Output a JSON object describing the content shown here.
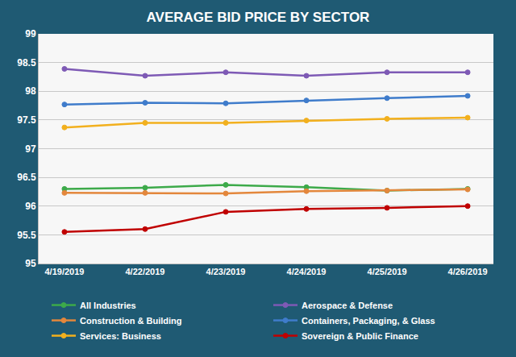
{
  "chart_data": {
    "type": "line",
    "title": "AVERAGE BID PRICE BY SECTOR",
    "categories": [
      "4/19/2019",
      "4/22/2019",
      "4/23/2019",
      "4/24/2019",
      "4/25/2019",
      "4/26/2019"
    ],
    "series": [
      {
        "name": "All Industries",
        "color": "#3DAA4A",
        "values": [
          96.3,
          96.32,
          96.37,
          96.33,
          96.27,
          96.3
        ]
      },
      {
        "name": "Aerospace & Defense",
        "color": "#7E5AB5",
        "values": [
          98.39,
          98.27,
          98.33,
          98.27,
          98.33,
          98.33
        ]
      },
      {
        "name": "Construction & Building",
        "color": "#E3873C",
        "values": [
          96.23,
          96.23,
          96.22,
          96.26,
          96.27,
          96.29
        ]
      },
      {
        "name": "Containers, Packaging, & Glass",
        "color": "#3F7CCB",
        "values": [
          97.77,
          97.8,
          97.79,
          97.84,
          97.88,
          97.92
        ]
      },
      {
        "name": "Services: Business",
        "color": "#F2B01E",
        "values": [
          97.37,
          97.45,
          97.45,
          97.49,
          97.52,
          97.54
        ]
      },
      {
        "name": "Sovereign & Public Finance",
        "color": "#C00000",
        "values": [
          95.55,
          95.6,
          95.9,
          95.95,
          95.97,
          96.0
        ]
      }
    ],
    "ylim": [
      95,
      99
    ],
    "yticks": [
      95,
      95.5,
      96,
      96.5,
      97,
      97.5,
      98,
      98.5,
      99
    ],
    "grid": true,
    "legend": "bottom",
    "marker": "circle"
  }
}
